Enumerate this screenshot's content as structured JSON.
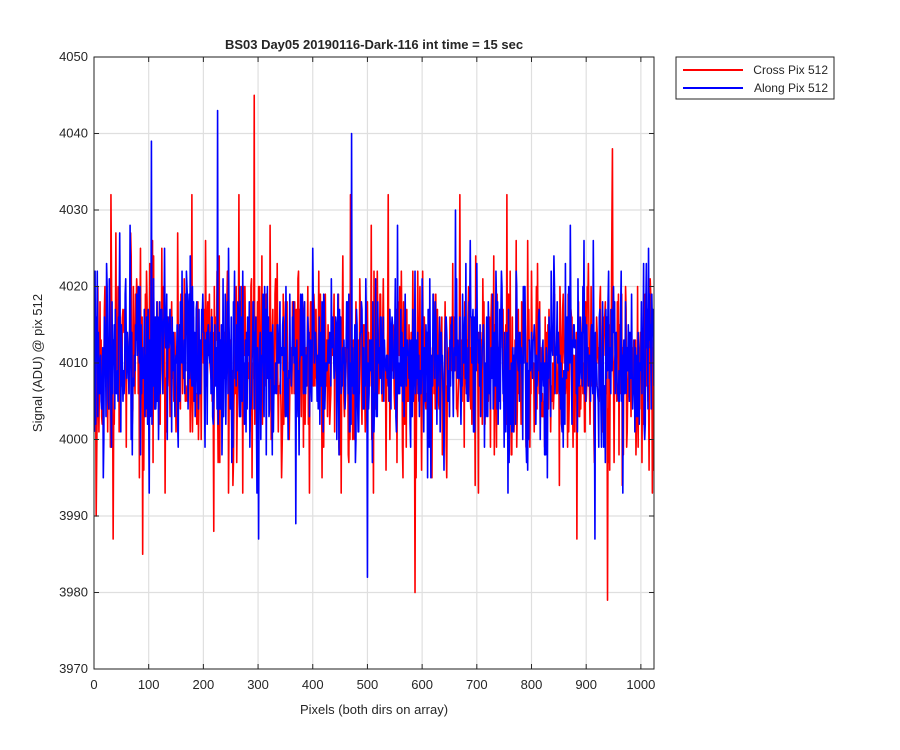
{
  "chart_data": {
    "type": "line",
    "title": "BS03 Day05 20190116-Dark-116 int time = 15 sec",
    "xlabel": "Pixels (both dirs on array)",
    "ylabel": "Signal (ADU) @ pix 512",
    "xlim": [
      0,
      1024
    ],
    "ylim": [
      3970,
      4050
    ],
    "xticks": [
      0,
      100,
      200,
      300,
      400,
      500,
      600,
      700,
      800,
      900,
      1000
    ],
    "yticks": [
      3970,
      3980,
      3990,
      4000,
      4010,
      4020,
      4030,
      4040,
      4050
    ],
    "grid": true,
    "legend_position": "outside-top-right",
    "num_points": 1024,
    "series": [
      {
        "name": "Cross Pix 512",
        "color": "#ff0000",
        "mean": 4010,
        "spread": 6.5,
        "seed": 17,
        "extremes": [
          [
            3,
            3990
          ],
          [
            30,
            4032
          ],
          [
            34,
            3987
          ],
          [
            88,
            3985
          ],
          [
            178,
            4032
          ],
          [
            218,
            3988
          ],
          [
            264,
            4032
          ],
          [
            292,
            4045
          ],
          [
            468,
            4032
          ],
          [
            537,
            4032
          ],
          [
            586,
            3980
          ],
          [
            668,
            4032
          ],
          [
            754,
            4032
          ],
          [
            882,
            3987
          ],
          [
            938,
            3979
          ],
          [
            947,
            4038
          ],
          [
            1020,
            3993
          ]
        ]
      },
      {
        "name": "Along Pix 512",
        "color": "#0000ff",
        "mean": 4010,
        "spread": 6.0,
        "seed": 91,
        "extremes": [
          [
            65,
            4028
          ],
          [
            104,
            4039
          ],
          [
            225,
            4043
          ],
          [
            300,
            3987
          ],
          [
            368,
            3989
          ],
          [
            470,
            4040
          ],
          [
            499,
            3982
          ],
          [
            660,
            4030
          ],
          [
            870,
            4028
          ],
          [
            915,
            3987
          ],
          [
            1000,
            4018
          ]
        ]
      }
    ]
  }
}
